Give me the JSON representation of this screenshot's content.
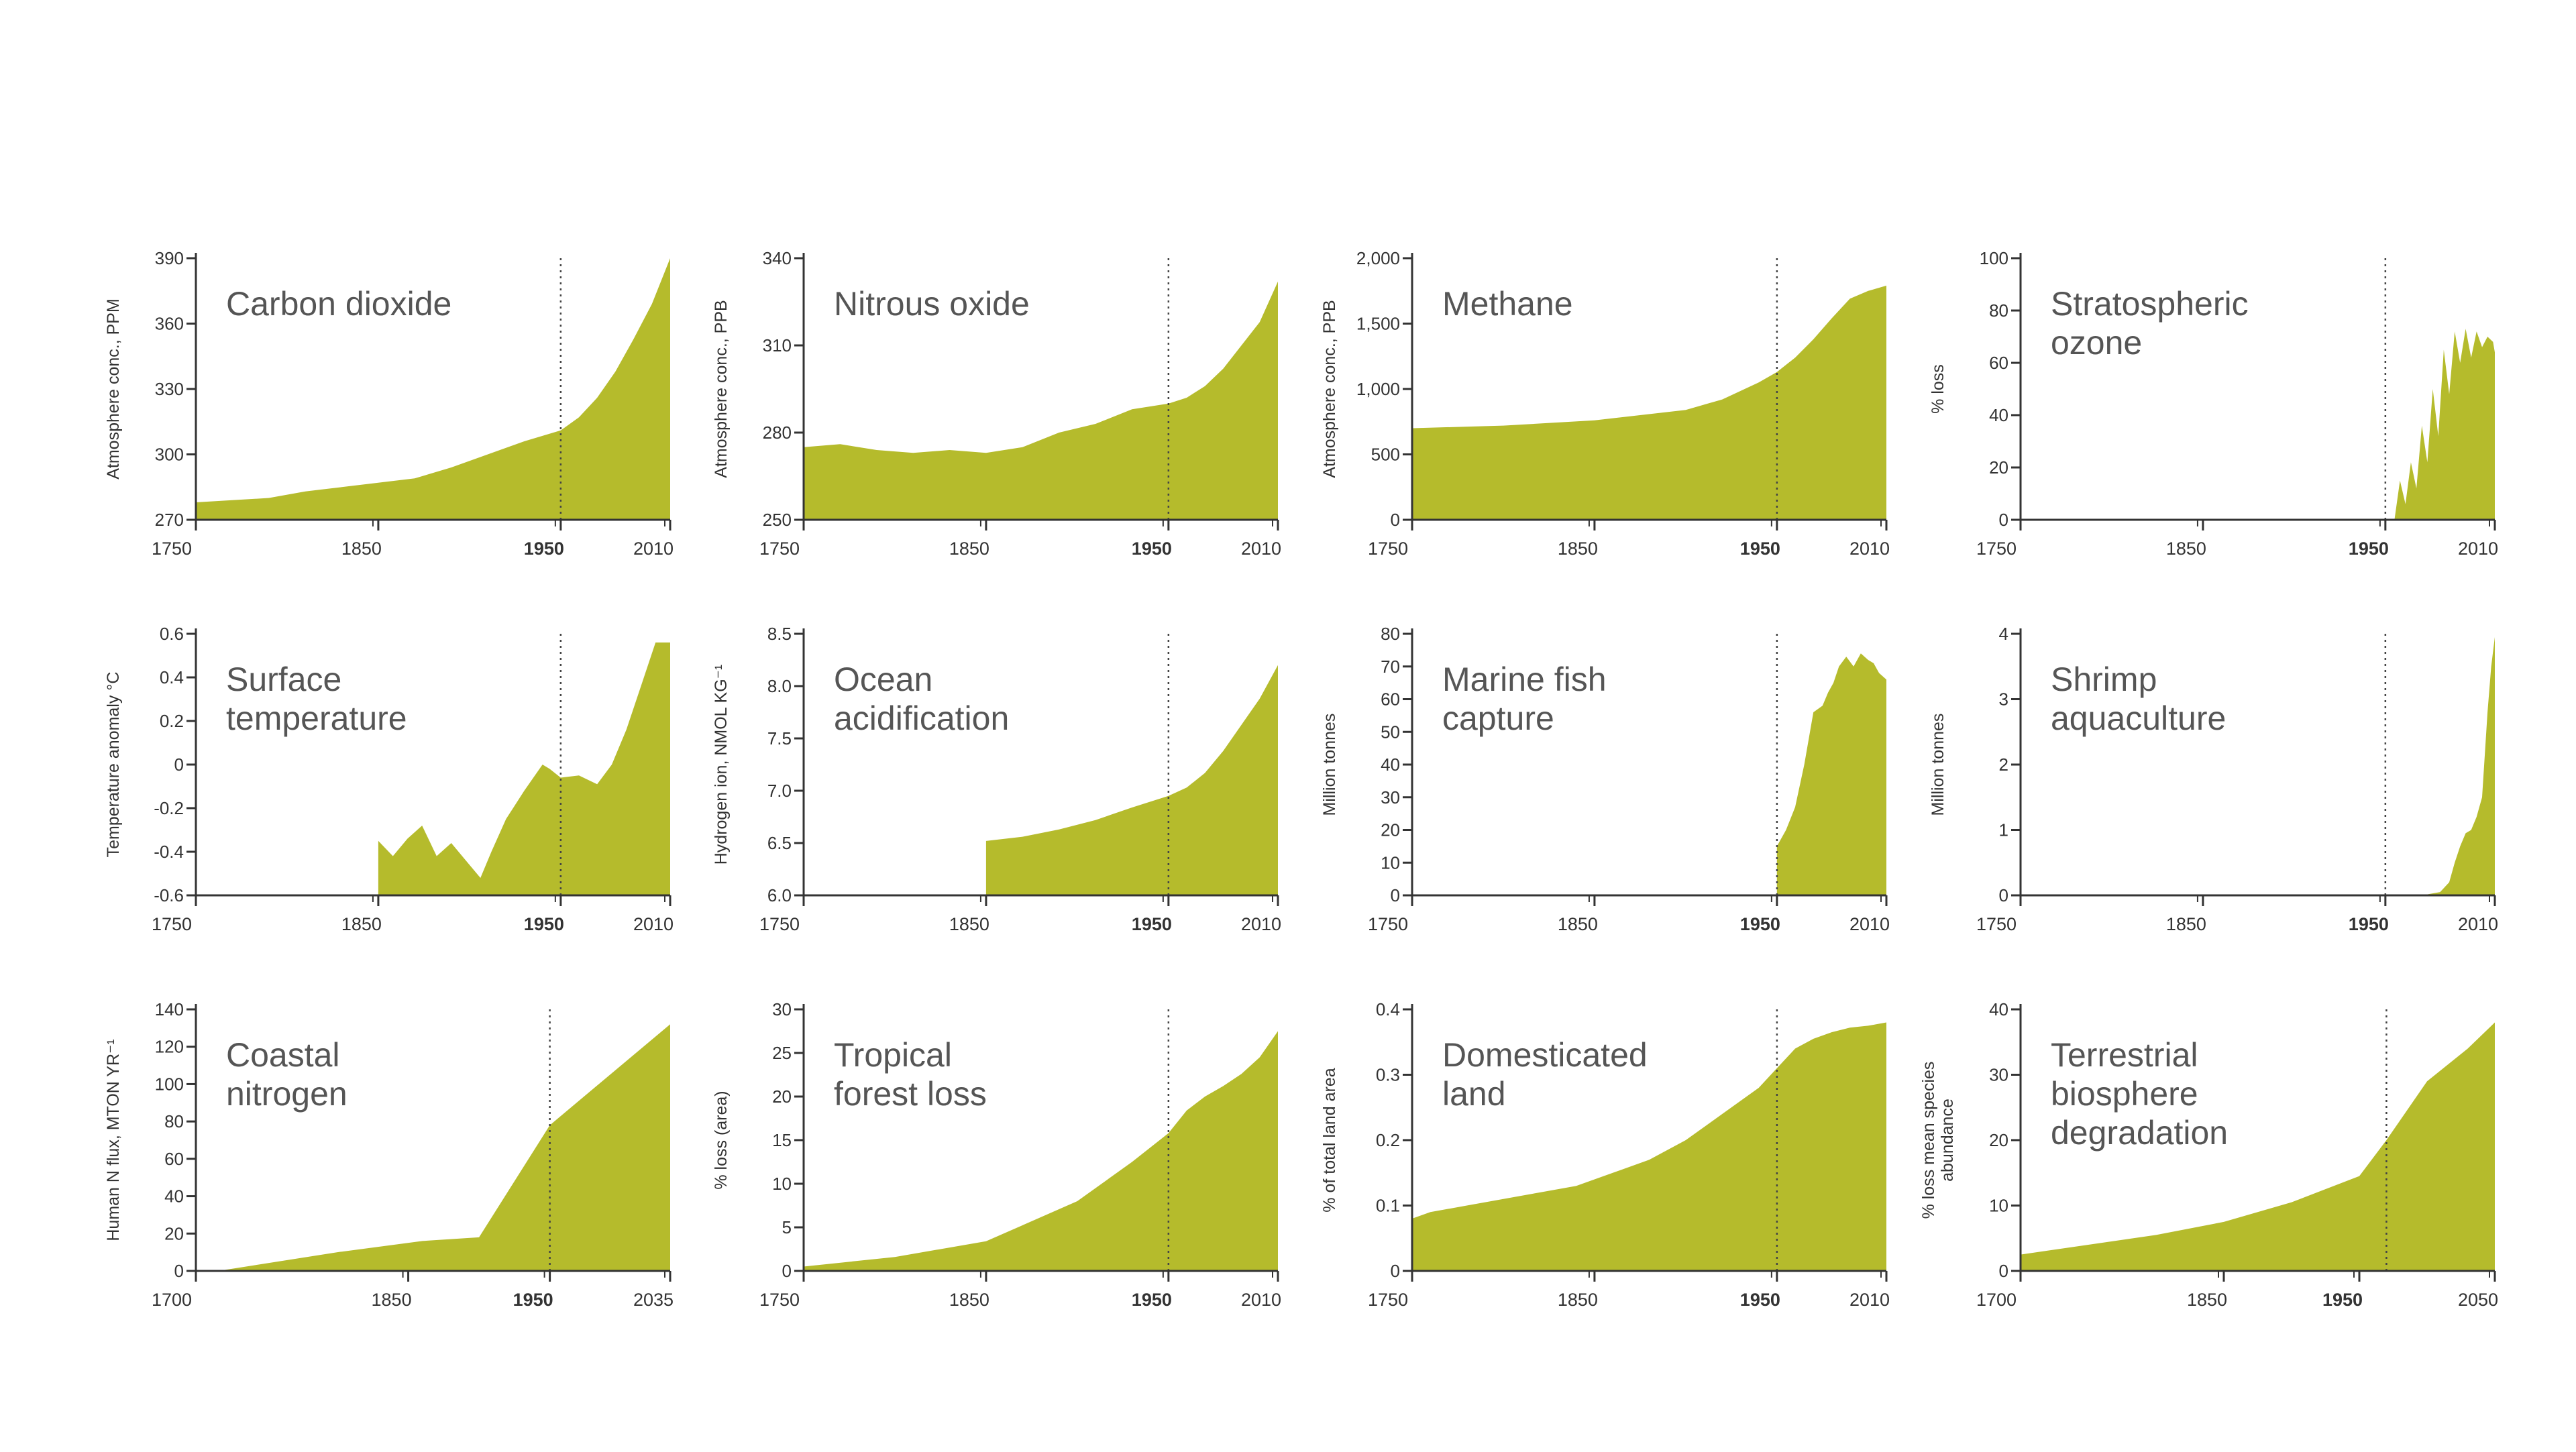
{
  "accent_color": "#b5bb2c",
  "chart_data": [
    {
      "type": "area",
      "title": "Carbon dioxide",
      "ylabel": "Atmosphere conc., PPM",
      "xlim": [
        1750,
        2010
      ],
      "ylim": [
        270,
        390
      ],
      "x_ticks": [
        "1750",
        "1850",
        "1950",
        "2010"
      ],
      "bold_tick": "1950",
      "y_ticks": [
        "270",
        "300",
        "330",
        "360",
        "390"
      ],
      "marker_x": 1950,
      "x": [
        1750,
        1770,
        1790,
        1810,
        1820,
        1830,
        1850,
        1870,
        1890,
        1900,
        1910,
        1930,
        1950,
        1960,
        1970,
        1980,
        1990,
        2000,
        2010
      ],
      "y": [
        278,
        279,
        280,
        283,
        284,
        285,
        287,
        289,
        294,
        297,
        300,
        306,
        311,
        317,
        326,
        338,
        353,
        369,
        390
      ]
    },
    {
      "type": "area",
      "title": "Nitrous oxide",
      "ylabel": "Atmosphere conc., PPB",
      "xlim": [
        1750,
        2010
      ],
      "ylim": [
        250,
        340
      ],
      "x_ticks": [
        "1750",
        "1850",
        "1950",
        "2010"
      ],
      "bold_tick": "1950",
      "y_ticks": [
        "250",
        "280",
        "310",
        "340"
      ],
      "marker_x": 1950,
      "x": [
        1750,
        1770,
        1790,
        1810,
        1830,
        1850,
        1870,
        1890,
        1910,
        1930,
        1950,
        1960,
        1970,
        1980,
        1990,
        2000,
        2010
      ],
      "y": [
        275,
        276,
        274,
        273,
        274,
        273,
        275,
        280,
        283,
        288,
        290,
        292,
        296,
        302,
        310,
        318,
        332
      ]
    },
    {
      "type": "area",
      "title": "Methane",
      "ylabel": "Atmosphere conc., PPB",
      "xlim": [
        1750,
        2010
      ],
      "ylim": [
        0,
        2000
      ],
      "x_ticks": [
        "1750",
        "1850",
        "1950",
        "2010"
      ],
      "bold_tick": "1950",
      "y_ticks": [
        "0",
        "500",
        "1,000",
        "1,500",
        "2,000"
      ],
      "marker_x": 1950,
      "x": [
        1750,
        1800,
        1850,
        1900,
        1920,
        1940,
        1950,
        1960,
        1970,
        1980,
        1990,
        2000,
        2010
      ],
      "y": [
        700,
        720,
        760,
        840,
        920,
        1050,
        1130,
        1240,
        1380,
        1540,
        1690,
        1750,
        1790
      ]
    },
    {
      "type": "area",
      "title": "Stratospheric ozone",
      "title_lines": [
        "Stratospheric",
        "ozone"
      ],
      "ylabel": "% loss",
      "xlim": [
        1750,
        2010
      ],
      "ylim": [
        0,
        100
      ],
      "x_ticks": [
        "1750",
        "1850",
        "1950",
        "2010"
      ],
      "bold_tick": "1950",
      "y_ticks": [
        "0",
        "20",
        "40",
        "60",
        "80",
        "100"
      ],
      "marker_x": 1950,
      "x": [
        1955,
        1958,
        1961,
        1964,
        1967,
        1970,
        1973,
        1976,
        1979,
        1982,
        1985,
        1988,
        1991,
        1994,
        1997,
        2000,
        2003,
        2006,
        2009,
        2010
      ],
      "y": [
        0,
        15,
        6,
        22,
        12,
        36,
        22,
        50,
        32,
        65,
        48,
        72,
        60,
        73,
        62,
        72,
        66,
        70,
        68,
        64
      ]
    },
    {
      "type": "area",
      "title": "Surface temperature",
      "title_lines": [
        "Surface",
        "temperature"
      ],
      "ylabel": "Temperature anomaly °C",
      "xlim": [
        1750,
        2010
      ],
      "ylim": [
        -0.6,
        0.6
      ],
      "x_ticks": [
        "1750",
        "1850",
        "1950",
        "2010"
      ],
      "bold_tick": "1950",
      "y_ticks": [
        "-0.6",
        "-0.4",
        "-0.2",
        "0",
        "0.2",
        "0.4",
        "0.6"
      ],
      "marker_x": 1950,
      "x": [
        1850,
        1858,
        1866,
        1874,
        1882,
        1890,
        1898,
        1906,
        1912,
        1920,
        1930,
        1940,
        1944,
        1950,
        1960,
        1970,
        1978,
        1986,
        1994,
        2002,
        2010
      ],
      "y": [
        -0.35,
        -0.42,
        -0.34,
        -0.28,
        -0.42,
        -0.36,
        -0.44,
        -0.52,
        -0.4,
        -0.25,
        -0.12,
        0.0,
        -0.02,
        -0.06,
        -0.05,
        -0.09,
        0.0,
        0.16,
        0.36,
        0.56,
        0.56
      ]
    },
    {
      "type": "area",
      "title": "Ocean acidification",
      "title_lines": [
        "Ocean",
        "acidification"
      ],
      "ylabel": "Hydrogen ion, NMOL KG⁻¹",
      "xlim": [
        1750,
        2010
      ],
      "ylim": [
        6.0,
        8.5
      ],
      "x_ticks": [
        "1750",
        "1850",
        "1950",
        "2010"
      ],
      "bold_tick": "1950",
      "y_ticks": [
        "6.0",
        "6.5",
        "7.0",
        "7.5",
        "8.0",
        "8.5"
      ],
      "marker_x": 1950,
      "x": [
        1850,
        1870,
        1890,
        1910,
        1930,
        1950,
        1960,
        1970,
        1980,
        1990,
        2000,
        2010
      ],
      "y": [
        6.52,
        6.56,
        6.63,
        6.72,
        6.84,
        6.95,
        7.03,
        7.17,
        7.38,
        7.63,
        7.88,
        8.2
      ]
    },
    {
      "type": "area",
      "title": "Marine fish capture",
      "title_lines": [
        "Marine fish",
        "capture"
      ],
      "ylabel": "Million tonnes",
      "xlim": [
        1750,
        2010
      ],
      "ylim": [
        0,
        80
      ],
      "x_ticks": [
        "1750",
        "1850",
        "1950",
        "2010"
      ],
      "bold_tick": "1950",
      "y_ticks": [
        "0",
        "10",
        "20",
        "30",
        "40",
        "50",
        "60",
        "70",
        "80"
      ],
      "marker_x": 1950,
      "x": [
        1950,
        1955,
        1960,
        1965,
        1970,
        1975,
        1978,
        1981,
        1984,
        1988,
        1992,
        1996,
        2000,
        2003,
        2006,
        2010
      ],
      "y": [
        15,
        20,
        27,
        40,
        56,
        58,
        62,
        65,
        70,
        73,
        70,
        74,
        72,
        71,
        68,
        66
      ]
    },
    {
      "type": "area",
      "title": "Shrimp aquaculture",
      "title_lines": [
        "Shrimp",
        "aquaculture"
      ],
      "ylabel": "Million tonnes",
      "xlim": [
        1750,
        2010
      ],
      "ylim": [
        0,
        4
      ],
      "x_ticks": [
        "1750",
        "1850",
        "1950",
        "2010"
      ],
      "bold_tick": "1950",
      "y_ticks": [
        "0",
        "1",
        "2",
        "3",
        "4"
      ],
      "marker_x": 1950,
      "x": [
        1970,
        1980,
        1985,
        1988,
        1991,
        1994,
        1997,
        2000,
        2003,
        2006,
        2008,
        2010
      ],
      "y": [
        0.0,
        0.05,
        0.2,
        0.5,
        0.75,
        0.95,
        1.0,
        1.2,
        1.5,
        2.8,
        3.5,
        3.95
      ]
    },
    {
      "type": "area",
      "title": "Coastal nitrogen",
      "title_lines": [
        "Coastal",
        "nitrogen"
      ],
      "ylabel": "Human N flux, MTON YR⁻¹",
      "xlim": [
        1700,
        2035
      ],
      "ylim": [
        0,
        140
      ],
      "x_ticks": [
        "1700",
        "1850",
        "1950",
        "2035"
      ],
      "bold_tick": "1950",
      "y_ticks": [
        "0",
        "20",
        "40",
        "60",
        "80",
        "100",
        "120",
        "140"
      ],
      "marker_x": 1950,
      "x": [
        1700,
        1720,
        1800,
        1860,
        1900,
        1950,
        2035
      ],
      "y": [
        0,
        0.5,
        10,
        16,
        18,
        78,
        132
      ]
    },
    {
      "type": "area",
      "title": "Tropical forest loss",
      "title_lines": [
        "Tropical",
        "forest loss"
      ],
      "ylabel": "% loss (area)",
      "xlim": [
        1750,
        2010
      ],
      "ylim": [
        0,
        30
      ],
      "x_ticks": [
        "1750",
        "1850",
        "1950",
        "2010"
      ],
      "bold_tick": "1950",
      "y_ticks": [
        "0",
        "5",
        "10",
        "15",
        "20",
        "25",
        "30"
      ],
      "marker_x": 1950,
      "x": [
        1750,
        1800,
        1850,
        1900,
        1930,
        1950,
        1960,
        1970,
        1980,
        1990,
        2000,
        2010
      ],
      "y": [
        0.5,
        1.6,
        3.4,
        8.0,
        12.5,
        15.8,
        18.4,
        20.0,
        21.2,
        22.6,
        24.5,
        27.5
      ]
    },
    {
      "type": "area",
      "title": "Domesticated land",
      "title_lines": [
        "Domesticated",
        "land"
      ],
      "ylabel": "% of total land area",
      "xlim": [
        1750,
        2010
      ],
      "ylim": [
        0,
        0.4
      ],
      "x_ticks": [
        "1750",
        "1850",
        "1950",
        "2010"
      ],
      "bold_tick": "1950",
      "y_ticks": [
        "0",
        "0.1",
        "0.2",
        "0.3",
        "0.4"
      ],
      "marker_x": 1950,
      "x": [
        1750,
        1760,
        1780,
        1800,
        1820,
        1840,
        1860,
        1880,
        1900,
        1920,
        1940,
        1950,
        1960,
        1970,
        1980,
        1990,
        2000,
        2010
      ],
      "y": [
        0.08,
        0.09,
        0.1,
        0.11,
        0.12,
        0.13,
        0.15,
        0.17,
        0.2,
        0.24,
        0.28,
        0.31,
        0.34,
        0.355,
        0.365,
        0.372,
        0.375,
        0.38
      ]
    },
    {
      "type": "area",
      "title": "Terrestrial biosphere degradation",
      "title_lines": [
        "Terrestrial",
        "biosphere",
        "degradation"
      ],
      "ylabel": "% loss mean species abundance",
      "ylabel_lines": [
        "% loss mean species",
        "abundance"
      ],
      "xlim": [
        1700,
        2050
      ],
      "ylim": [
        0,
        40
      ],
      "x_ticks": [
        "1700",
        "1850",
        "1950",
        "2050"
      ],
      "bold_tick": "1950",
      "y_ticks": [
        "0",
        "10",
        "20",
        "30",
        "40"
      ],
      "marker_x": 1970,
      "x": [
        1700,
        1750,
        1800,
        1850,
        1900,
        1950,
        1970,
        2000,
        2030,
        2050
      ],
      "y": [
        2.5,
        4,
        5.5,
        7.5,
        10.5,
        14.5,
        20,
        29,
        34,
        38
      ]
    }
  ]
}
